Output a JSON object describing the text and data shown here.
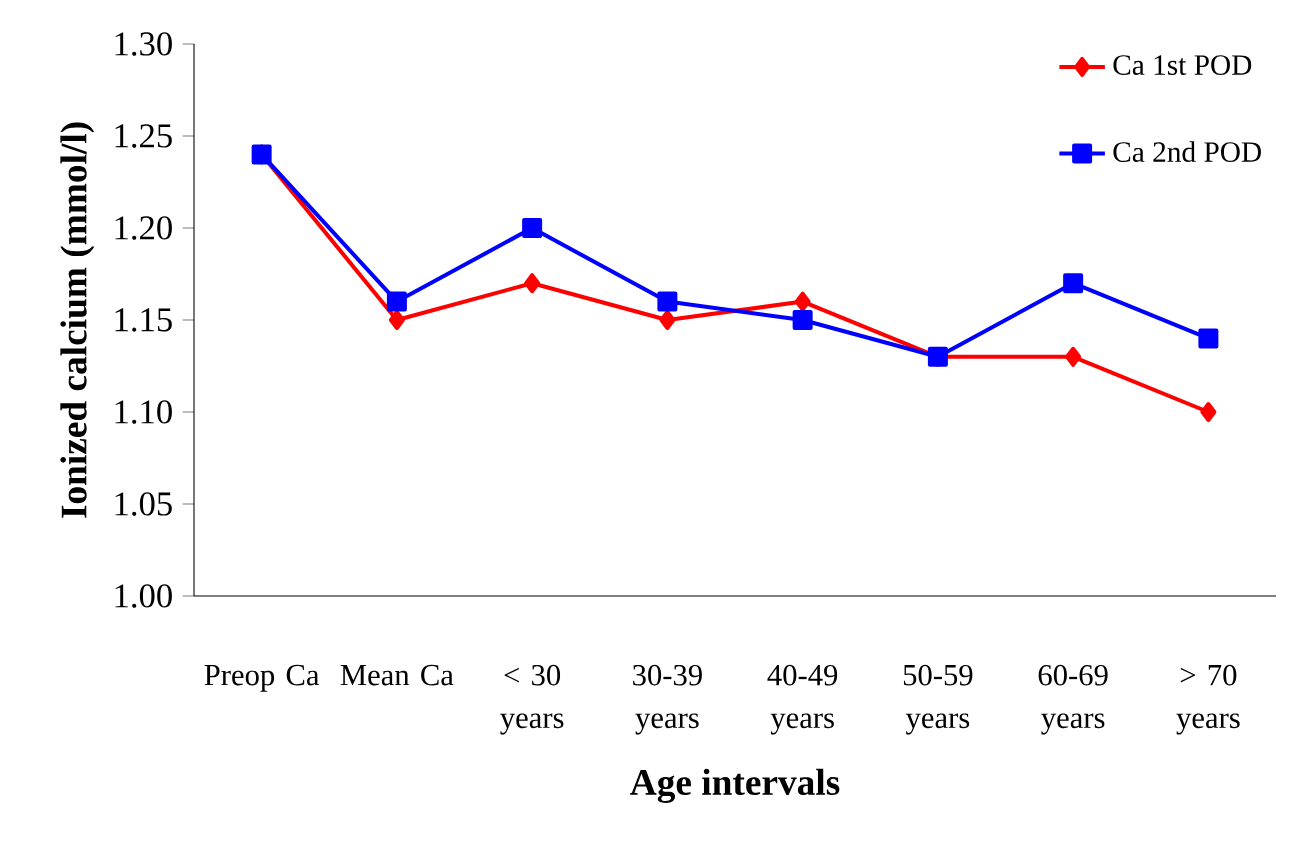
{
  "chart_data": {
    "type": "line",
    "xlabel": "Age intervals",
    "ylabel": "Ionized calcium (mmol/l)",
    "categories": [
      "Preop Ca",
      "Mean Ca",
      "< 30 years",
      "30-39 years",
      "40-49 years",
      "50-59 years",
      "60-69 years",
      "> 70 years"
    ],
    "series": [
      {
        "name": "Ca 1st POD",
        "color": "#ff0000",
        "marker": "diamond",
        "values": [
          1.24,
          1.15,
          1.17,
          1.15,
          1.16,
          1.13,
          1.13,
          1.1
        ]
      },
      {
        "name": "Ca 2nd POD",
        "color": "#0000ff",
        "marker": "square",
        "values": [
          1.24,
          1.16,
          1.2,
          1.16,
          1.15,
          1.13,
          1.17,
          1.14
        ]
      }
    ],
    "ylim": [
      1.0,
      1.3
    ],
    "yticks": [
      {
        "value": 1.0,
        "label": "1.00"
      },
      {
        "value": 1.05,
        "label": "1.05"
      },
      {
        "value": 1.1,
        "label": "1.10"
      },
      {
        "value": 1.15,
        "label": "1.15"
      },
      {
        "value": 1.2,
        "label": "1.20"
      },
      {
        "value": 1.25,
        "label": "1.25"
      },
      {
        "value": 1.3,
        "label": "1.30"
      }
    ],
    "grid": false,
    "legend": "top right"
  }
}
